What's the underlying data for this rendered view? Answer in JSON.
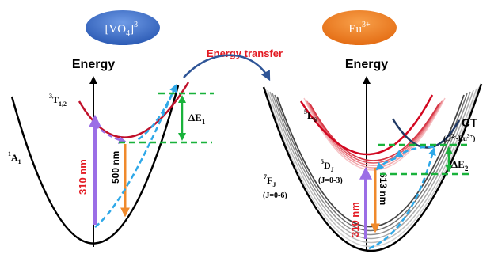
{
  "badges": {
    "vanadate": {
      "base": "[VO",
      "sub": "4",
      "close": "]",
      "sup": "3-"
    },
    "europium": {
      "base": "Eu",
      "sup": "3+"
    }
  },
  "arrow_label": "Energy transfer",
  "left_panel": {
    "axis_label": "Energy",
    "ground_state": {
      "base": "A",
      "pre_sup": "1",
      "sub": "1"
    },
    "excited_state": {
      "base": "T",
      "pre_sup": "3",
      "sub": "1,2"
    },
    "excitation": "310 nm",
    "emission": "500 nm",
    "delta": {
      "base": "ΔE",
      "sub": "1"
    }
  },
  "right_panel": {
    "axis_label": "Energy",
    "ground_state": {
      "base": "F",
      "pre_sup": "7",
      "sub": "J",
      "range": "(J=0-6)"
    },
    "upper_state": {
      "base": "L",
      "pre_sup": "5",
      "sub": "6"
    },
    "emitting_state": {
      "base": "D",
      "pre_sup": "5",
      "sub": "J",
      "range": "(J=0-3)"
    },
    "ct_state": {
      "label": "CT",
      "detail_open": "(O",
      "detail_sup1": "2-",
      "detail_mid": "-Eu",
      "detail_sup2": "3+",
      "detail_close": ")"
    },
    "excitation": "310 nm",
    "emission": "613 nm",
    "delta": {
      "base": "ΔE",
      "sub": "2"
    }
  },
  "colors": {
    "badge_blue": "#3d6fc9",
    "badge_orange": "#ef7d22",
    "transfer_red": "#e31b23",
    "ground_curve": "#000000",
    "excited_curve": "#c0102a",
    "ct_curve": "#1f3864",
    "excitation_arrow": "#9b6ee6",
    "emission_arrow": "#f08a2c",
    "relax_arrow": "#2ea8e8",
    "delta_green": "#19b23b",
    "wavelength_red": "#e31b23"
  }
}
